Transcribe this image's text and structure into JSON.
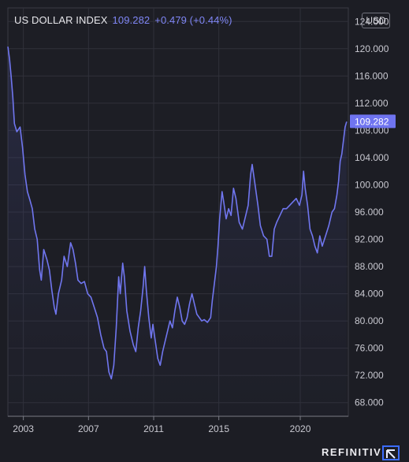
{
  "header": {
    "title": "US DOLLAR INDEX",
    "price": "109.282",
    "change": "+0.479 (+0.44%)",
    "unit": "USD"
  },
  "brand": {
    "name": "REFINITIV",
    "logo_icon": "refinitiv-logo-icon"
  },
  "colors": {
    "background": "#1c1d24",
    "plot_background": "#1d1e25",
    "line": "#7076ef",
    "text": "#e6e6ea",
    "axis_text": "#c9c9d1",
    "price_tag_bg": "#6f74f0"
  },
  "chart_data": {
    "type": "area",
    "title": "US DOLLAR INDEX",
    "xlabel": "",
    "ylabel": "",
    "ylim": [
      66,
      126
    ],
    "xlim": [
      2002.05,
      2022.95
    ],
    "grid": true,
    "legend": "none",
    "last_value_label": "109.282",
    "x_ticks": [
      {
        "value": 2003,
        "label": "2003"
      },
      {
        "value": 2007,
        "label": "2007"
      },
      {
        "value": 2011,
        "label": "2011"
      },
      {
        "value": 2015,
        "label": "2015"
      },
      {
        "value": 2020,
        "label": "2020"
      }
    ],
    "y_ticks": [
      {
        "value": 68,
        "label": "68.000"
      },
      {
        "value": 72,
        "label": "72.000"
      },
      {
        "value": 76,
        "label": "76.000"
      },
      {
        "value": 80,
        "label": "80.000"
      },
      {
        "value": 84,
        "label": "84.000"
      },
      {
        "value": 88,
        "label": "88.000"
      },
      {
        "value": 92,
        "label": "92.000"
      },
      {
        "value": 96,
        "label": "96.000"
      },
      {
        "value": 100,
        "label": "100.000"
      },
      {
        "value": 104,
        "label": "104.000"
      },
      {
        "value": 108,
        "label": "108.000"
      },
      {
        "value": 112,
        "label": "112.000"
      },
      {
        "value": 116,
        "label": "116.000"
      },
      {
        "value": 120,
        "label": "120.000"
      },
      {
        "value": 124,
        "label": "124.000"
      }
    ],
    "series": [
      {
        "points": [
          [
            2002.05,
            120.3
          ],
          [
            2002.15,
            118.5
          ],
          [
            2002.25,
            116.0
          ],
          [
            2002.35,
            113.0
          ],
          [
            2002.45,
            109.0
          ],
          [
            2002.6,
            107.8
          ],
          [
            2002.8,
            108.5
          ],
          [
            2002.95,
            105.5
          ],
          [
            2003.1,
            101.5
          ],
          [
            2003.25,
            99.0
          ],
          [
            2003.4,
            97.8
          ],
          [
            2003.55,
            96.5
          ],
          [
            2003.7,
            93.5
          ],
          [
            2003.85,
            92.0
          ],
          [
            2004.0,
            87.5
          ],
          [
            2004.1,
            86.0
          ],
          [
            2004.25,
            90.5
          ],
          [
            2004.45,
            89.0
          ],
          [
            2004.6,
            87.5
          ],
          [
            2004.75,
            84.5
          ],
          [
            2004.9,
            82.0
          ],
          [
            2005.0,
            81.0
          ],
          [
            2005.15,
            84.0
          ],
          [
            2005.35,
            86.0
          ],
          [
            2005.5,
            89.5
          ],
          [
            2005.7,
            88.0
          ],
          [
            2005.9,
            91.5
          ],
          [
            2006.05,
            90.5
          ],
          [
            2006.2,
            88.5
          ],
          [
            2006.35,
            86.0
          ],
          [
            2006.55,
            85.5
          ],
          [
            2006.75,
            85.8
          ],
          [
            2006.95,
            84.0
          ],
          [
            2007.15,
            83.5
          ],
          [
            2007.35,
            82.0
          ],
          [
            2007.55,
            80.5
          ],
          [
            2007.75,
            78.0
          ],
          [
            2007.95,
            76.0
          ],
          [
            2008.1,
            75.5
          ],
          [
            2008.25,
            72.5
          ],
          [
            2008.4,
            71.5
          ],
          [
            2008.55,
            73.5
          ],
          [
            2008.7,
            79.0
          ],
          [
            2008.85,
            86.5
          ],
          [
            2008.95,
            84.0
          ],
          [
            2009.1,
            88.5
          ],
          [
            2009.2,
            86.5
          ],
          [
            2009.35,
            81.5
          ],
          [
            2009.55,
            78.5
          ],
          [
            2009.75,
            76.5
          ],
          [
            2009.9,
            75.5
          ],
          [
            2010.05,
            79.0
          ],
          [
            2010.2,
            81.5
          ],
          [
            2010.35,
            85.0
          ],
          [
            2010.45,
            88.0
          ],
          [
            2010.55,
            84.5
          ],
          [
            2010.7,
            80.5
          ],
          [
            2010.85,
            77.5
          ],
          [
            2010.95,
            79.5
          ],
          [
            2011.1,
            77.0
          ],
          [
            2011.25,
            74.5
          ],
          [
            2011.4,
            73.5
          ],
          [
            2011.55,
            75.5
          ],
          [
            2011.7,
            77.0
          ],
          [
            2011.85,
            78.5
          ],
          [
            2012.0,
            80.0
          ],
          [
            2012.15,
            79.0
          ],
          [
            2012.3,
            81.5
          ],
          [
            2012.45,
            83.5
          ],
          [
            2012.6,
            82.0
          ],
          [
            2012.75,
            80.0
          ],
          [
            2012.9,
            79.5
          ],
          [
            2013.05,
            80.5
          ],
          [
            2013.2,
            82.5
          ],
          [
            2013.35,
            84.0
          ],
          [
            2013.5,
            82.5
          ],
          [
            2013.65,
            81.0
          ],
          [
            2013.8,
            80.5
          ],
          [
            2013.95,
            80.0
          ],
          [
            2014.1,
            80.2
          ],
          [
            2014.3,
            79.8
          ],
          [
            2014.5,
            80.5
          ],
          [
            2014.6,
            83.0
          ],
          [
            2014.7,
            85.0
          ],
          [
            2014.85,
            88.0
          ],
          [
            2014.95,
            91.0
          ],
          [
            2015.05,
            95.0
          ],
          [
            2015.2,
            99.0
          ],
          [
            2015.3,
            97.5
          ],
          [
            2015.45,
            95.0
          ],
          [
            2015.6,
            96.5
          ],
          [
            2015.75,
            95.5
          ],
          [
            2015.9,
            99.5
          ],
          [
            2016.05,
            98.0
          ],
          [
            2016.25,
            94.5
          ],
          [
            2016.45,
            93.5
          ],
          [
            2016.65,
            95.5
          ],
          [
            2016.8,
            97.0
          ],
          [
            2016.95,
            101.5
          ],
          [
            2017.05,
            103.0
          ],
          [
            2017.2,
            100.5
          ],
          [
            2017.4,
            97.0
          ],
          [
            2017.55,
            94.0
          ],
          [
            2017.75,
            92.5
          ],
          [
            2017.95,
            92.0
          ],
          [
            2018.1,
            89.5
          ],
          [
            2018.25,
            89.5
          ],
          [
            2018.4,
            93.5
          ],
          [
            2018.55,
            94.5
          ],
          [
            2018.75,
            95.5
          ],
          [
            2018.95,
            96.5
          ],
          [
            2019.15,
            96.5
          ],
          [
            2019.35,
            97.0
          ],
          [
            2019.55,
            97.5
          ],
          [
            2019.75,
            98.0
          ],
          [
            2019.95,
            97.0
          ],
          [
            2020.1,
            98.5
          ],
          [
            2020.2,
            102.0
          ],
          [
            2020.3,
            99.5
          ],
          [
            2020.45,
            97.0
          ],
          [
            2020.6,
            93.5
          ],
          [
            2020.75,
            92.5
          ],
          [
            2020.9,
            91.0
          ],
          [
            2021.05,
            90.0
          ],
          [
            2021.2,
            92.5
          ],
          [
            2021.35,
            91.0
          ],
          [
            2021.55,
            92.5
          ],
          [
            2021.75,
            94.0
          ],
          [
            2021.95,
            96.0
          ],
          [
            2022.1,
            96.5
          ],
          [
            2022.25,
            98.5
          ],
          [
            2022.35,
            100.5
          ],
          [
            2022.45,
            103.5
          ],
          [
            2022.55,
            104.5
          ],
          [
            2022.65,
            106.5
          ],
          [
            2022.75,
            108.5
          ],
          [
            2022.85,
            109.282
          ]
        ]
      }
    ]
  }
}
